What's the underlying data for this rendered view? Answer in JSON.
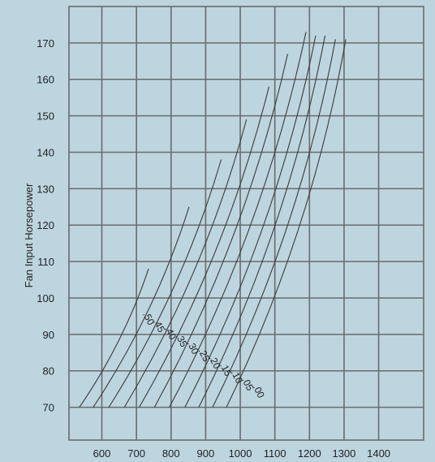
{
  "chart_data": {
    "type": "line",
    "title": "",
    "xlabel": "",
    "ylabel": "Fan Input Horsepower",
    "xlim": [
      505,
      1530
    ],
    "ylim": [
      61,
      180
    ],
    "grid": true,
    "x_ticks": [
      600,
      700,
      800,
      900,
      1000,
      1100,
      1200,
      1300,
      1400
    ],
    "y_ticks": [
      70,
      80,
      90,
      100,
      110,
      120,
      130,
      140,
      150,
      160,
      170
    ],
    "x_tick_labels": [
      "600",
      "700",
      "800",
      "900",
      "1000",
      "1100",
      "1200",
      "1300",
      "1400"
    ],
    "y_tick_labels": [
      "70",
      "80",
      "90",
      "100",
      "110",
      "120",
      "130",
      "140",
      "150",
      "160",
      "170"
    ],
    "series": [
      {
        "name": ".50",
        "x": [
          535,
          735
        ],
        "y": [
          70,
          108
        ]
      },
      {
        "name": ".45",
        "x": [
          575,
          852
        ],
        "y": [
          70,
          125
        ]
      },
      {
        "name": ".40",
        "x": [
          620,
          945
        ],
        "y": [
          70,
          138
        ]
      },
      {
        "name": ".35",
        "x": [
          665,
          1018
        ],
        "y": [
          70,
          149
        ]
      },
      {
        "name": ".30",
        "x": [
          708,
          1083
        ],
        "y": [
          70,
          158
        ]
      },
      {
        "name": ".25",
        "x": [
          752,
          1137
        ],
        "y": [
          70,
          167
        ]
      },
      {
        "name": ".20",
        "x": [
          795,
          1190
        ],
        "y": [
          70,
          173
        ]
      },
      {
        "name": ".15",
        "x": [
          840,
          1218
        ],
        "y": [
          70,
          172
        ]
      },
      {
        "name": ".10",
        "x": [
          880,
          1245
        ],
        "y": [
          70,
          172
        ]
      },
      {
        "name": ".05",
        "x": [
          920,
          1275
        ],
        "y": [
          70,
          171
        ]
      },
      {
        "name": ".00",
        "x": [
          960,
          1305
        ],
        "y": [
          70,
          171
        ]
      }
    ],
    "curve_labels": [
      {
        "text": ".50",
        "x": 727,
        "y": 94
      },
      {
        "text": ".45",
        "x": 757,
        "y": 92
      },
      {
        "text": ".40",
        "x": 790,
        "y": 90
      },
      {
        "text": ".35",
        "x": 822,
        "y": 88
      },
      {
        "text": ".30",
        "x": 855,
        "y": 86
      },
      {
        "text": ".25",
        "x": 887,
        "y": 84
      },
      {
        "text": ".20",
        "x": 918,
        "y": 82
      },
      {
        "text": ".15",
        "x": 950,
        "y": 80
      },
      {
        "text": ".10",
        "x": 982,
        "y": 78
      },
      {
        "text": ".05",
        "x": 1013,
        "y": 76
      },
      {
        "text": ".00",
        "x": 1045,
        "y": 74
      }
    ],
    "colors": {
      "background": "#bdd5df",
      "grid": "#6b6b6b",
      "curve": "#3a3a3a",
      "text": "#222222"
    }
  }
}
